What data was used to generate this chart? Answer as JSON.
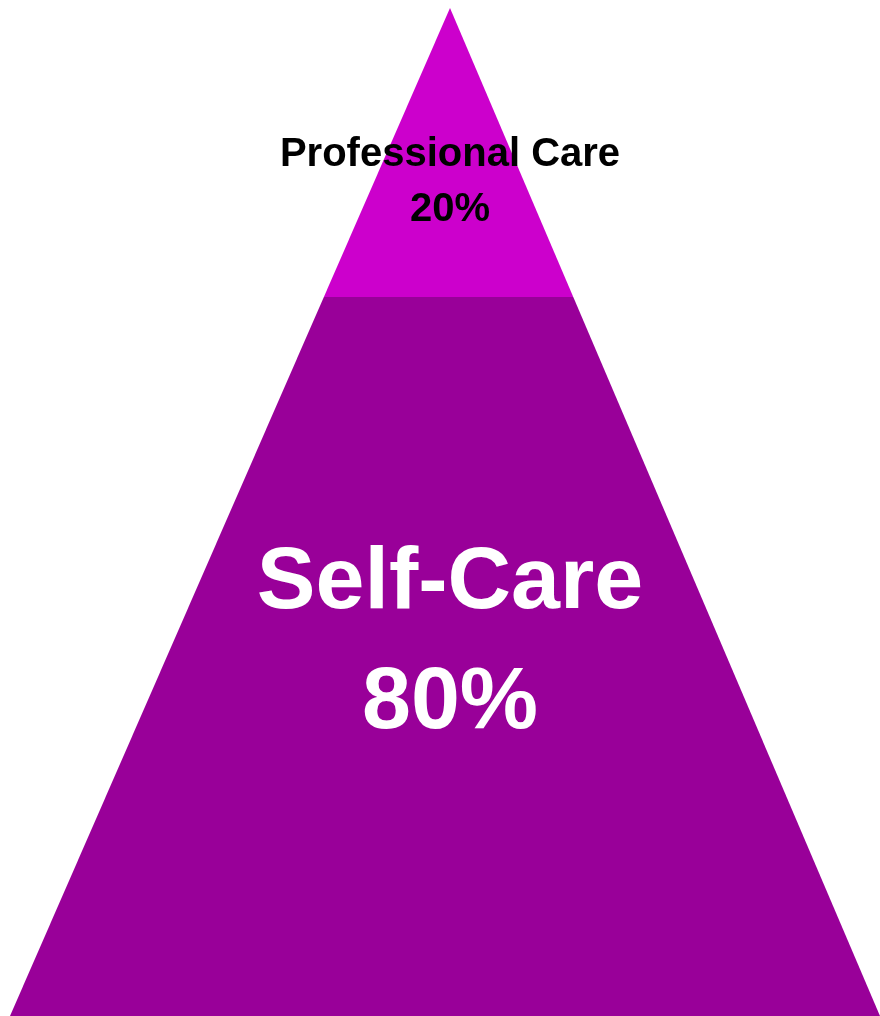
{
  "chart_data": {
    "type": "other",
    "categories": [
      "Professional Care",
      "Self-Care"
    ],
    "values": [
      20,
      80
    ],
    "value_labels": [
      "20%",
      "80%"
    ],
    "colors": [
      "#cc00cc",
      "#990099"
    ]
  }
}
